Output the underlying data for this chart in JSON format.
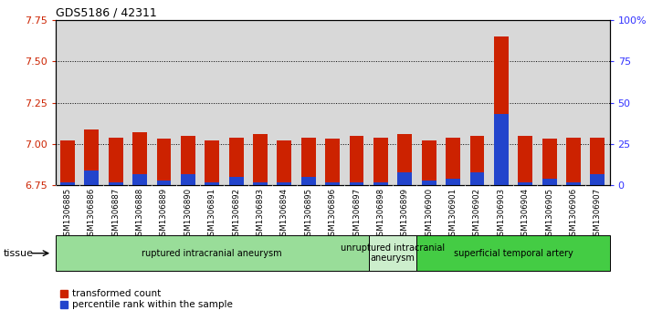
{
  "title": "GDS5186 / 42311",
  "samples": [
    "GSM1306885",
    "GSM1306886",
    "GSM1306887",
    "GSM1306888",
    "GSM1306889",
    "GSM1306890",
    "GSM1306891",
    "GSM1306892",
    "GSM1306893",
    "GSM1306894",
    "GSM1306895",
    "GSM1306896",
    "GSM1306897",
    "GSM1306898",
    "GSM1306899",
    "GSM1306900",
    "GSM1306901",
    "GSM1306902",
    "GSM1306903",
    "GSM1306904",
    "GSM1306905",
    "GSM1306906",
    "GSM1306907"
  ],
  "red_values": [
    7.02,
    7.09,
    7.04,
    7.07,
    7.03,
    7.05,
    7.02,
    7.04,
    7.06,
    7.02,
    7.04,
    7.03,
    7.05,
    7.04,
    7.06,
    7.02,
    7.04,
    7.05,
    7.65,
    7.05,
    7.03,
    7.04,
    7.04
  ],
  "blue_values": [
    6.77,
    6.84,
    6.77,
    6.82,
    6.78,
    6.82,
    6.77,
    6.8,
    6.77,
    6.77,
    6.8,
    6.77,
    6.77,
    6.77,
    6.83,
    6.78,
    6.79,
    6.83,
    7.18,
    6.77,
    6.79,
    6.77,
    6.82
  ],
  "groups": [
    {
      "label": "ruptured intracranial aneurysm",
      "start": 0,
      "end": 13,
      "color": "#99dd99"
    },
    {
      "label": "unruptured intracranial\naneurysm",
      "start": 13,
      "end": 15,
      "color": "#cceecc"
    },
    {
      "label": "superficial temporal artery",
      "start": 15,
      "end": 23,
      "color": "#44cc44"
    }
  ],
  "ylim_left": [
    6.75,
    7.75
  ],
  "ylim_right": [
    0,
    100
  ],
  "bar_color": "#cc2200",
  "blue_color": "#2244cc",
  "left_tick_color": "#cc2200",
  "right_tick_color": "#3333ff",
  "left_ticks": [
    6.75,
    7.0,
    7.25,
    7.5,
    7.75
  ],
  "right_ticks": [
    0,
    25,
    50,
    75,
    100
  ],
  "right_tick_labels": [
    "0",
    "25",
    "50",
    "75",
    "100%"
  ],
  "grid_lines": [
    7.0,
    7.25,
    7.5
  ]
}
